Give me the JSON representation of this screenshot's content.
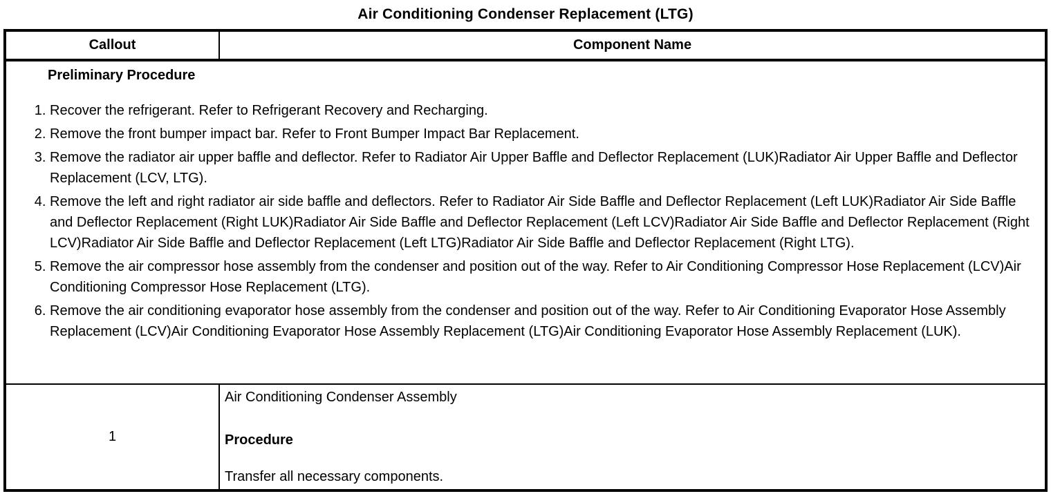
{
  "title": "Air Conditioning Condenser Replacement (LTG)",
  "table": {
    "headers": {
      "callout": "Callout",
      "component": "Component Name"
    },
    "preliminary": {
      "heading": "Preliminary Procedure",
      "steps": [
        "Recover the refrigerant. Refer to Refrigerant Recovery and Recharging.",
        "Remove the front bumper impact bar. Refer to Front Bumper Impact Bar Replacement.",
        "Remove the radiator air upper baffle and deflector. Refer to Radiator Air Upper Baffle and Deflector Replacement (LUK)Radiator Air Upper Baffle and Deflector Replacement (LCV, LTG).",
        "Remove the left and right radiator air side baffle and deflectors. Refer to Radiator Air Side Baffle and Deflector Replacement (Left LUK)Radiator Air Side Baffle and Deflector Replacement (Right LUK)Radiator Air Side Baffle and Deflector Replacement (Left LCV)Radiator Air Side Baffle and Deflector Replacement (Right LCV)Radiator Air Side Baffle and Deflector Replacement (Left LTG)Radiator Air Side Baffle and Deflector Replacement (Right LTG).",
        "Remove the air compressor hose assembly from the condenser and position out of the way. Refer to Air Conditioning Compressor Hose Replacement (LCV)Air Conditioning Compressor Hose Replacement (LTG).",
        "Remove the air conditioning evaporator hose assembly from the condenser and position out of the way. Refer to Air Conditioning Evaporator Hose Assembly Replacement (LCV)Air Conditioning Evaporator Hose Assembly Replacement (LTG)Air Conditioning Evaporator Hose Assembly Replacement (LUK)."
      ]
    },
    "rows": [
      {
        "callout": "1",
        "component_name": "Air Conditioning Condenser Assembly",
        "procedure_heading": "Procedure",
        "procedure_text": "Transfer all necessary components."
      }
    ]
  },
  "colors": {
    "background": "#ffffff",
    "text": "#000000",
    "border": "#000000"
  }
}
